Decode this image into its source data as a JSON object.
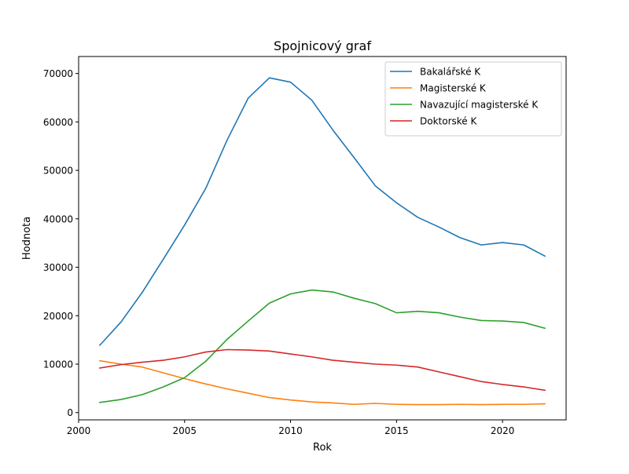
{
  "chart_data": {
    "type": "line",
    "title": "Spojnicový graf",
    "xlabel": "Rok",
    "ylabel": "Hodnota",
    "xlim": [
      2000,
      2023
    ],
    "ylim": [
      -1500,
      73500
    ],
    "xticks": [
      2000,
      2005,
      2010,
      2015,
      2020
    ],
    "yticks": [
      0,
      10000,
      20000,
      30000,
      40000,
      50000,
      60000,
      70000
    ],
    "grid": false,
    "legend_position": "top-right",
    "x": [
      2001,
      2002,
      2003,
      2004,
      2005,
      2006,
      2007,
      2008,
      2009,
      2010,
      2011,
      2012,
      2013,
      2014,
      2015,
      2016,
      2017,
      2018,
      2019,
      2020,
      2021,
      2022
    ],
    "series": [
      {
        "name": "Bakalářské K",
        "color": "#1f77b4",
        "values": [
          13900,
          18700,
          24800,
          31700,
          38700,
          46300,
          56200,
          64900,
          69100,
          68200,
          64500,
          58300,
          52600,
          46800,
          43300,
          40300,
          38300,
          36100,
          34600,
          35100,
          34600,
          32300
        ]
      },
      {
        "name": "Magisterské K",
        "color": "#ff7f0e",
        "values": [
          10700,
          10000,
          9400,
          8200,
          7000,
          5900,
          4900,
          4000,
          3100,
          2600,
          2200,
          2000,
          1700,
          1900,
          1700,
          1650,
          1650,
          1700,
          1650,
          1700,
          1700,
          1800
        ]
      },
      {
        "name": "Navazující magisterské K",
        "color": "#2ca02c",
        "values": [
          2100,
          2700,
          3700,
          5300,
          7200,
          10600,
          15100,
          18900,
          22600,
          24500,
          25300,
          24900,
          23600,
          22500,
          20600,
          20900,
          20600,
          19700,
          19000,
          18900,
          18600,
          17400
        ]
      },
      {
        "name": "Doktorské K",
        "color": "#d62728",
        "values": [
          9200,
          9900,
          10400,
          10800,
          11500,
          12500,
          13000,
          12900,
          12700,
          12100,
          11500,
          10800,
          10400,
          10000,
          9800,
          9400,
          8400,
          7400,
          6400,
          5800,
          5300,
          4600
        ]
      }
    ]
  }
}
